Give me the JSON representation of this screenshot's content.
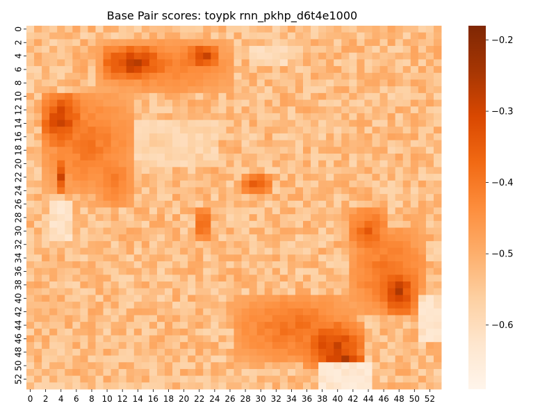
{
  "chart_data": {
    "type": "heatmap",
    "title": "Base Pair scores: toypk rnn_pkhp_d6t4e1000",
    "xlabel": "",
    "ylabel": "",
    "n_rows": 54,
    "n_cols": 54,
    "x_tick_labels": [
      "0",
      "2",
      "4",
      "6",
      "8",
      "10",
      "12",
      "14",
      "16",
      "18",
      "20",
      "22",
      "24",
      "26",
      "28",
      "30",
      "32",
      "34",
      "36",
      "38",
      "40",
      "42",
      "44",
      "46",
      "48",
      "50",
      "52"
    ],
    "y_tick_labels": [
      "0",
      "2",
      "4",
      "6",
      "8",
      "10",
      "12",
      "14",
      "16",
      "18",
      "20",
      "22",
      "24",
      "26",
      "28",
      "30",
      "32",
      "34",
      "36",
      "38",
      "40",
      "42",
      "44",
      "46",
      "48",
      "50",
      "52"
    ],
    "colorbar": {
      "colormap": "Oranges",
      "vmin": -0.69,
      "vmax": -0.18,
      "tick_values": [
        -0.2,
        -0.3,
        -0.4,
        -0.5,
        -0.6
      ],
      "tick_labels": [
        "−0.2",
        "−0.3",
        "−0.4",
        "−0.5",
        "−0.6"
      ]
    },
    "baseline_value": -0.53,
    "hot_regions": [
      {
        "row": [
          3,
          7
        ],
        "col": [
          10,
          17
        ],
        "peak": -0.22
      },
      {
        "row": [
          3,
          5
        ],
        "col": [
          21,
          24
        ],
        "peak": -0.22
      },
      {
        "row": [
          2,
          9
        ],
        "col": [
          9,
          26
        ],
        "peak": -0.38
      },
      {
        "row": [
          10,
          17
        ],
        "col": [
          2,
          6
        ],
        "peak": -0.24
      },
      {
        "row": [
          10,
          24
        ],
        "col": [
          2,
          13
        ],
        "peak": -0.37
      },
      {
        "row": [
          20,
          24
        ],
        "col": [
          4,
          4
        ],
        "peak": -0.24
      },
      {
        "row": [
          19,
          26
        ],
        "col": [
          9,
          13
        ],
        "peak": -0.37
      },
      {
        "row": [
          22,
          24
        ],
        "col": [
          28,
          31
        ],
        "peak": -0.3
      },
      {
        "row": [
          27,
          31
        ],
        "col": [
          22,
          23
        ],
        "peak": -0.3
      },
      {
        "row": [
          27,
          33
        ],
        "col": [
          42,
          46
        ],
        "peak": -0.33
      },
      {
        "row": [
          30,
          42
        ],
        "col": [
          42,
          51
        ],
        "peak": -0.36
      },
      {
        "row": [
          36,
          42
        ],
        "col": [
          46,
          50
        ],
        "peak": -0.24
      },
      {
        "row": [
          40,
          49
        ],
        "col": [
          27,
          42
        ],
        "peak": -0.36
      },
      {
        "row": [
          44,
          50
        ],
        "col": [
          36,
          43
        ],
        "peak": -0.25
      },
      {
        "row": [
          48,
          50
        ],
        "col": [
          38,
          43
        ],
        "peak": -0.22
      }
    ],
    "cold_regions": [
      {
        "row": [
          26,
          31
        ],
        "col": [
          3,
          5
        ],
        "low": -0.64
      },
      {
        "row": [
          50,
          53
        ],
        "col": [
          38,
          44
        ],
        "low": -0.66
      },
      {
        "row": [
          3,
          5
        ],
        "col": [
          29,
          33
        ],
        "low": -0.62
      },
      {
        "row": [
          14,
          20
        ],
        "col": [
          14,
          24
        ],
        "low": -0.6
      },
      {
        "row": [
          40,
          46
        ],
        "col": [
          51,
          53
        ],
        "low": -0.64
      }
    ],
    "noise_amplitude": 0.05
  }
}
